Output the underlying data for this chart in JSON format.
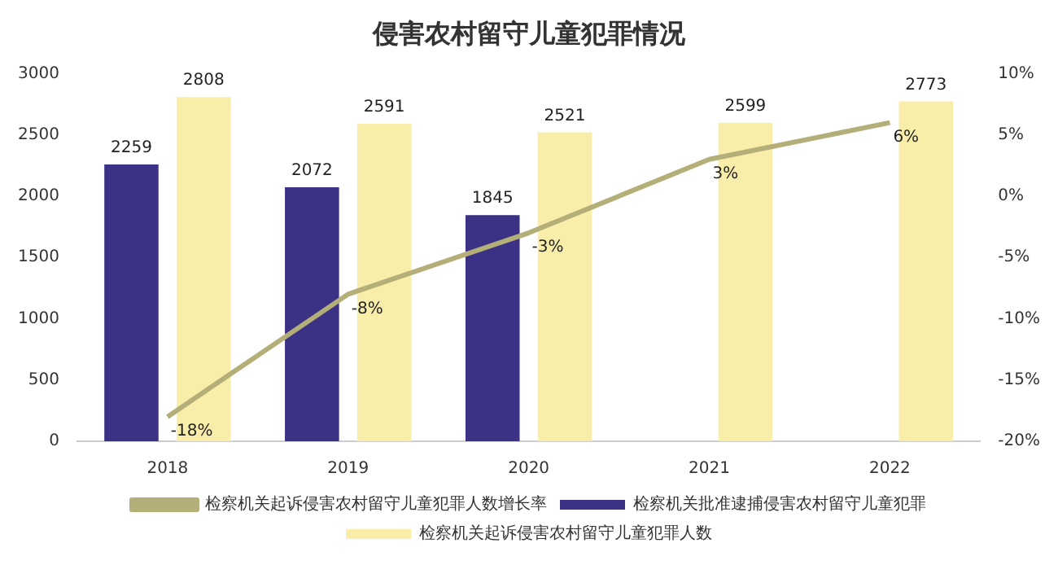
{
  "chart_data": {
    "type": "bar",
    "title": "侵害农村留守儿童犯罪情况",
    "categories": [
      "2018",
      "2019",
      "2020",
      "2021",
      "2022"
    ],
    "series": [
      {
        "name": "检察机关批准逮捕侵害农村留守儿童犯罪",
        "color": "#3b3286",
        "values": [
          2259,
          2072,
          1845,
          null,
          null
        ],
        "value_labels": [
          "2259",
          "2072",
          "1845",
          null,
          null
        ]
      },
      {
        "name": "检察机关起诉侵害农村留守儿童犯罪人数",
        "color": "#f8eeaa",
        "values": [
          2808,
          2591,
          2521,
          2599,
          2773
        ],
        "value_labels": [
          "2808",
          "2591",
          "2521",
          "2599",
          "2773"
        ]
      },
      {
        "name": "检察机关起诉侵害农村留守儿童犯罪人数增长率",
        "type": "line",
        "axis": "y2",
        "color": "#b4ae78",
        "values": [
          -18,
          -8,
          -3,
          3,
          6
        ],
        "value_labels": [
          "-18%",
          "-8%",
          "-3%",
          "3%",
          "6%"
        ]
      }
    ],
    "ylim": [
      0,
      3000
    ],
    "yticks": [
      0,
      500,
      1000,
      1500,
      2000,
      2500,
      3000
    ],
    "y2lim": [
      -20,
      10
    ],
    "y2ticks": [
      {
        "value": -20,
        "label": "-20%"
      },
      {
        "value": -15,
        "label": "-15%"
      },
      {
        "value": -10,
        "label": "-10%"
      },
      {
        "value": -5,
        "label": "-5%"
      },
      {
        "value": 0,
        "label": "0%"
      },
      {
        "value": 5,
        "label": "5%"
      },
      {
        "value": 10,
        "label": "10%"
      }
    ],
    "legend": "bottom",
    "grid": false,
    "marker": "none"
  }
}
